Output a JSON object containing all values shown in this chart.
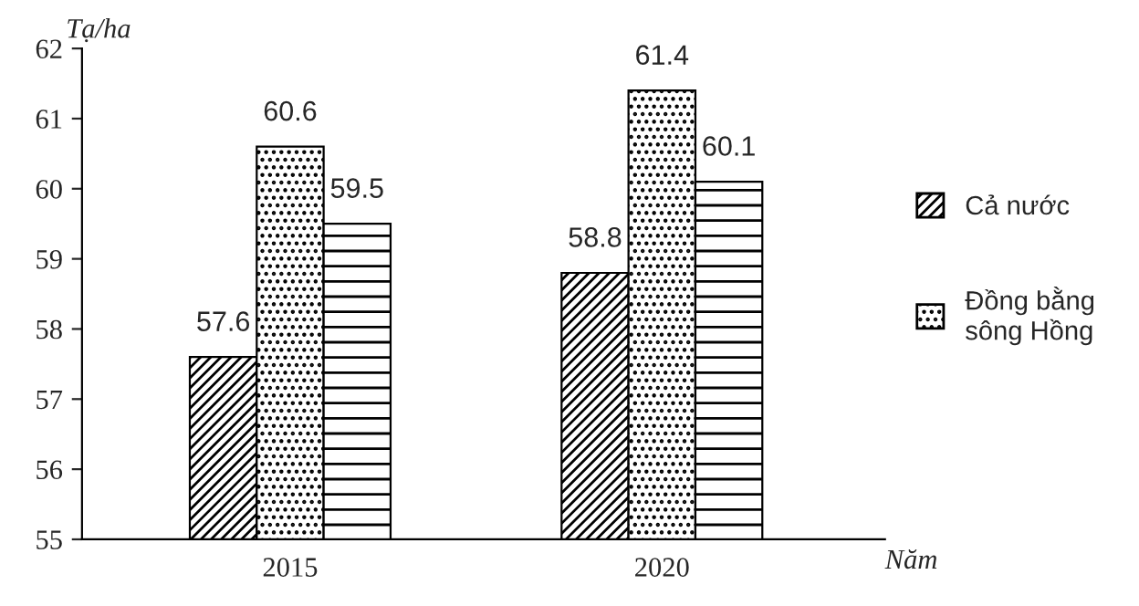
{
  "chart_data": {
    "type": "bar",
    "ylabel": "Tạ/ha",
    "xlabel": "Năm",
    "categories": [
      "2015",
      "2020"
    ],
    "series": [
      {
        "name": "Cả nước",
        "color": "#000000",
        "values": [
          57.6,
          58.8
        ]
      },
      {
        "name": "Đồng bằng\nsông Hồng",
        "color": "#000000",
        "values": [
          60.6,
          61.4
        ]
      },
      {
        "color": "#000000",
        "values": [
          59.5,
          60.1
        ]
      }
    ],
    "ylim": [
      55,
      62
    ],
    "yticks": [
      55,
      56,
      57,
      58,
      59,
      60,
      61,
      62
    ],
    "data_labels": true,
    "grid": false,
    "legend": "right"
  }
}
